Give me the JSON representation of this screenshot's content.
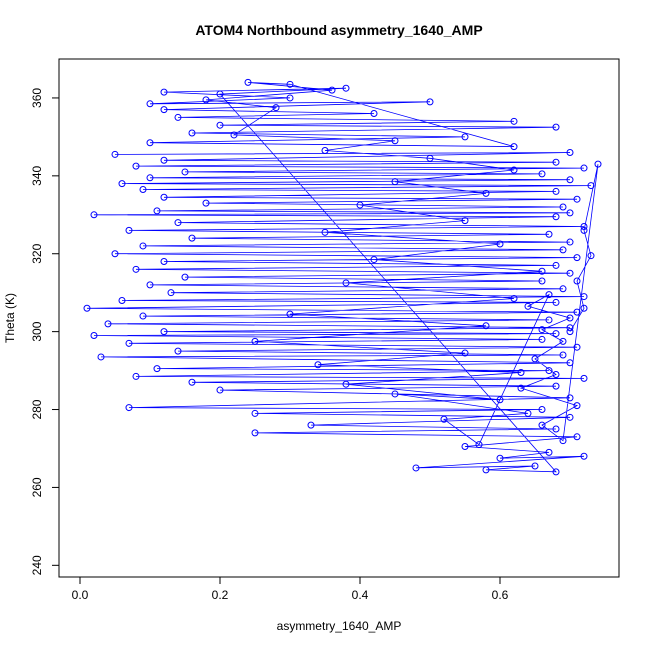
{
  "chart_data": {
    "type": "scatter",
    "connected": true,
    "title": "ATOM4 Northbound asymmetry_1640_AMP",
    "xlabel": "asymmetry_1640_AMP",
    "ylabel": "Theta (K)",
    "xlim": [
      -0.03,
      0.77
    ],
    "ylim": [
      237,
      370
    ],
    "xticks": [
      0.0,
      0.2,
      0.4,
      0.6
    ],
    "xtick_labels": [
      "0.0",
      "0.2",
      "0.4",
      "0.6"
    ],
    "yticks": [
      240,
      260,
      280,
      300,
      320,
      340,
      360
    ],
    "ytick_labels": [
      "240",
      "260",
      "280",
      "300",
      "320",
      "340",
      "360"
    ],
    "grid": false,
    "legend": "none",
    "series": [
      {
        "color": "#0000ff",
        "marker": "open-circle",
        "points": [
          [
            0.05,
            345.5
          ],
          [
            0.7,
            346.0
          ],
          [
            0.12,
            344.0
          ],
          [
            0.68,
            343.5
          ],
          [
            0.08,
            342.5
          ],
          [
            0.72,
            342.0
          ],
          [
            0.15,
            341.0
          ],
          [
            0.66,
            340.5
          ],
          [
            0.1,
            339.5
          ],
          [
            0.7,
            339.0
          ],
          [
            0.06,
            338.0
          ],
          [
            0.73,
            337.5
          ],
          [
            0.09,
            336.5
          ],
          [
            0.68,
            336.0
          ],
          [
            0.12,
            334.5
          ],
          [
            0.71,
            334.0
          ],
          [
            0.18,
            333.0
          ],
          [
            0.69,
            332.0
          ],
          [
            0.11,
            331.0
          ],
          [
            0.7,
            330.5
          ],
          [
            0.02,
            330.0
          ],
          [
            0.68,
            329.5
          ],
          [
            0.14,
            328.0
          ],
          [
            0.72,
            327.0
          ],
          [
            0.07,
            326.0
          ],
          [
            0.67,
            325.0
          ],
          [
            0.16,
            324.0
          ],
          [
            0.7,
            323.0
          ],
          [
            0.09,
            322.0
          ],
          [
            0.69,
            321.0
          ],
          [
            0.05,
            320.0
          ],
          [
            0.71,
            319.0
          ],
          [
            0.12,
            318.0
          ],
          [
            0.68,
            317.0
          ],
          [
            0.08,
            316.0
          ],
          [
            0.7,
            315.0
          ],
          [
            0.15,
            314.0
          ],
          [
            0.66,
            313.0
          ],
          [
            0.1,
            312.0
          ],
          [
            0.69,
            311.0
          ],
          [
            0.13,
            310.0
          ],
          [
            0.72,
            309.0
          ],
          [
            0.06,
            308.0
          ],
          [
            0.68,
            307.5
          ],
          [
            0.01,
            306.0
          ],
          [
            0.71,
            305.0
          ],
          [
            0.09,
            304.0
          ],
          [
            0.67,
            303.0
          ],
          [
            0.04,
            302.0
          ],
          [
            0.7,
            301.0
          ],
          [
            0.12,
            300.0
          ],
          [
            0.68,
            299.5
          ],
          [
            0.02,
            299.0
          ],
          [
            0.66,
            298.0
          ],
          [
            0.07,
            297.0
          ],
          [
            0.71,
            296.0
          ],
          [
            0.14,
            295.0
          ],
          [
            0.69,
            294.0
          ],
          [
            0.03,
            293.5
          ],
          [
            0.7,
            292.0
          ],
          [
            0.11,
            290.5
          ],
          [
            0.67,
            290.0
          ],
          [
            0.08,
            288.5
          ],
          [
            0.72,
            288.0
          ],
          [
            0.16,
            287.0
          ],
          [
            0.68,
            286.0
          ],
          [
            0.2,
            285.0
          ],
          [
            0.7,
            283.0
          ],
          [
            0.07,
            280.5
          ],
          [
            0.66,
            280.0
          ],
          [
            0.25,
            279.0
          ],
          [
            0.7,
            278.0
          ],
          [
            0.33,
            276.0
          ],
          [
            0.68,
            275.0
          ],
          [
            0.25,
            274.0
          ],
          [
            0.71,
            273.0
          ],
          [
            0.55,
            270.5
          ],
          [
            0.67,
            269.0
          ],
          [
            0.6,
            267.5
          ],
          [
            0.72,
            268.0
          ],
          [
            0.48,
            265.0
          ],
          [
            0.65,
            265.5
          ],
          [
            0.58,
            264.5
          ],
          [
            0.68,
            264.0
          ],
          [
            0.2,
            361.0
          ],
          [
            0.38,
            362.5
          ],
          [
            0.12,
            361.5
          ],
          [
            0.3,
            360.0
          ],
          [
            0.1,
            358.5
          ],
          [
            0.5,
            359.0
          ],
          [
            0.12,
            357.0
          ],
          [
            0.42,
            356.0
          ],
          [
            0.14,
            355.0
          ],
          [
            0.62,
            354.0
          ],
          [
            0.2,
            353.0
          ],
          [
            0.68,
            352.5
          ],
          [
            0.16,
            351.0
          ],
          [
            0.55,
            350.0
          ],
          [
            0.1,
            348.5
          ],
          [
            0.62,
            347.5
          ],
          [
            0.3,
            363.5
          ],
          [
            0.24,
            364.0
          ],
          [
            0.36,
            362.0
          ],
          [
            0.18,
            359.5
          ],
          [
            0.28,
            357.5
          ],
          [
            0.22,
            350.5
          ],
          [
            0.45,
            349.0
          ],
          [
            0.35,
            346.5
          ],
          [
            0.5,
            344.5
          ],
          [
            0.62,
            341.5
          ],
          [
            0.45,
            338.5
          ],
          [
            0.58,
            335.5
          ],
          [
            0.4,
            332.5
          ],
          [
            0.55,
            328.5
          ],
          [
            0.35,
            325.5
          ],
          [
            0.6,
            322.5
          ],
          [
            0.42,
            318.5
          ],
          [
            0.66,
            315.5
          ],
          [
            0.38,
            312.5
          ],
          [
            0.62,
            308.5
          ],
          [
            0.3,
            304.5
          ],
          [
            0.58,
            301.5
          ],
          [
            0.25,
            297.5
          ],
          [
            0.55,
            294.5
          ],
          [
            0.34,
            291.5
          ],
          [
            0.63,
            289.5
          ],
          [
            0.38,
            286.5
          ],
          [
            0.6,
            282.5
          ],
          [
            0.45,
            284.0
          ],
          [
            0.64,
            279.0
          ],
          [
            0.52,
            277.5
          ],
          [
            0.57,
            271.0
          ],
          [
            0.67,
            309.5
          ],
          [
            0.64,
            306.5
          ],
          [
            0.7,
            303.5
          ],
          [
            0.66,
            300.5
          ],
          [
            0.69,
            297.5
          ],
          [
            0.65,
            293.0
          ],
          [
            0.68,
            289.0
          ],
          [
            0.63,
            285.5
          ],
          [
            0.71,
            281.0
          ],
          [
            0.66,
            276.0
          ],
          [
            0.69,
            272.0
          ],
          [
            0.74,
            343.0
          ],
          [
            0.72,
            326.0
          ],
          [
            0.73,
            319.5
          ],
          [
            0.71,
            313.0
          ],
          [
            0.72,
            306.0
          ],
          [
            0.7,
            300.0
          ]
        ]
      }
    ]
  }
}
